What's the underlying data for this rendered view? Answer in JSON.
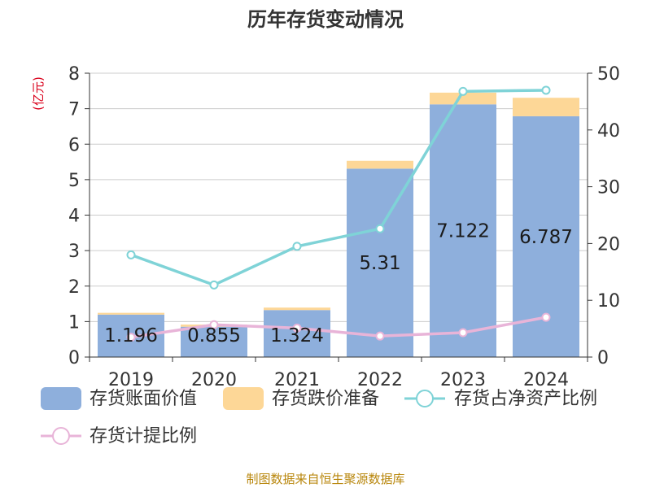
{
  "title": "历年存货变动情况",
  "source": "制图数据来自恒生聚源数据库",
  "chart_data": {
    "type": "bar",
    "stacked": true,
    "categories": [
      "2019",
      "2020",
      "2021",
      "2022",
      "2023",
      "2024"
    ],
    "y_left": {
      "unit": "(亿元)",
      "ylim": [
        0,
        8
      ],
      "ticks": [
        0,
        1,
        2,
        3,
        4,
        5,
        6,
        7,
        8
      ]
    },
    "y_right": {
      "unit": "%",
      "ylim": [
        0,
        50
      ],
      "ticks": [
        0,
        10,
        20,
        30,
        40,
        50
      ]
    },
    "grid": true,
    "legend_position": "bottom",
    "series": [
      {
        "name": "存货账面价值",
        "type": "bar",
        "axis": "left",
        "color": "#8eafdc",
        "values": [
          1.196,
          0.855,
          1.324,
          5.31,
          7.122,
          6.787
        ],
        "labels": [
          "1.196",
          "0.855",
          "1.324",
          "5.31",
          "7.122",
          "6.787"
        ]
      },
      {
        "name": "存货跌价准备",
        "type": "bar",
        "axis": "left",
        "color": "#fdd797",
        "values": [
          0.05,
          0.06,
          0.07,
          0.22,
          0.33,
          0.52
        ]
      },
      {
        "name": "存货占净资产比例",
        "type": "line",
        "axis": "right",
        "color": "#7fd3d7",
        "values": [
          18.0,
          12.7,
          19.5,
          22.6,
          46.8,
          47.0
        ]
      },
      {
        "name": "存货计提比例",
        "type": "line",
        "axis": "right",
        "color": "#e8b4d8",
        "values": [
          3.5,
          5.7,
          5.1,
          3.7,
          4.3,
          7.0
        ]
      }
    ]
  }
}
